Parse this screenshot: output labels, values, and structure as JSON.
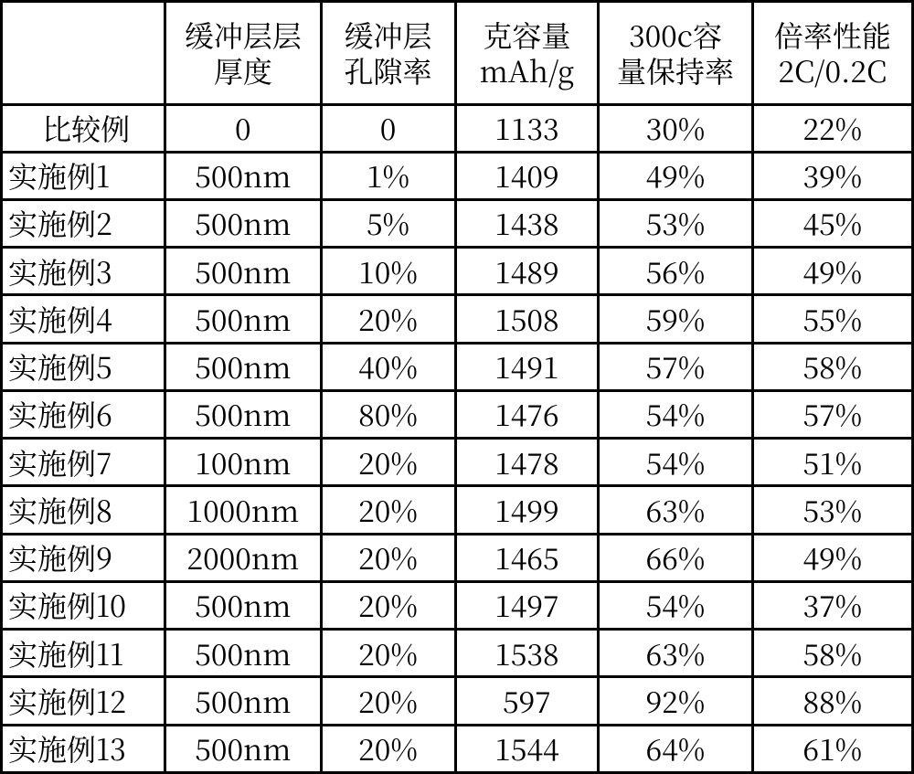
{
  "headers": {
    "label": "",
    "col1_line1": "缓冲层层",
    "col1_line2": "厚度",
    "col2_line1": "缓冲层",
    "col2_line2": "孔隙率",
    "col3_line1": "克容量",
    "col3_line2": "mAh/g",
    "col4_line1": "300c容",
    "col4_line2": "量保持率",
    "col5_line1": "倍率性能",
    "col5_line2": "2C/0.2C"
  },
  "rows": [
    {
      "label": "比较例",
      "c1": "0",
      "c2": "0",
      "c3": "1133",
      "c4": "30%",
      "c5": "22%"
    },
    {
      "label": "实施例1",
      "c1": "500nm",
      "c2": "1%",
      "c3": "1409",
      "c4": "49%",
      "c5": "39%"
    },
    {
      "label": "实施例2",
      "c1": "500nm",
      "c2": "5%",
      "c3": "1438",
      "c4": "53%",
      "c5": "45%"
    },
    {
      "label": "实施例3",
      "c1": "500nm",
      "c2": "10%",
      "c3": "1489",
      "c4": "56%",
      "c5": "49%"
    },
    {
      "label": "实施例4",
      "c1": "500nm",
      "c2": "20%",
      "c3": "1508",
      "c4": "59%",
      "c5": "55%"
    },
    {
      "label": "实施例5",
      "c1": "500nm",
      "c2": "40%",
      "c3": "1491",
      "c4": "57%",
      "c5": "58%"
    },
    {
      "label": "实施例6",
      "c1": "500nm",
      "c2": "80%",
      "c3": "1476",
      "c4": "54%",
      "c5": "57%"
    },
    {
      "label": "实施例7",
      "c1": "100nm",
      "c2": "20%",
      "c3": "1478",
      "c4": "54%",
      "c5": "51%"
    },
    {
      "label": "实施例8",
      "c1": "1000nm",
      "c2": "20%",
      "c3": "1499",
      "c4": "63%",
      "c5": "53%"
    },
    {
      "label": "实施例9",
      "c1": "2000nm",
      "c2": "20%",
      "c3": "1465",
      "c4": "66%",
      "c5": "49%"
    },
    {
      "label": "实施例10",
      "c1": "500nm",
      "c2": "20%",
      "c3": "1497",
      "c4": "54%",
      "c5": "37%"
    },
    {
      "label": "实施例11",
      "c1": "500nm",
      "c2": "20%",
      "c3": "1538",
      "c4": "63%",
      "c5": "58%"
    },
    {
      "label": "实施例12",
      "c1": "500nm",
      "c2": "20%",
      "c3": "597",
      "c4": "92%",
      "c5": "88%"
    },
    {
      "label": "实施例13",
      "c1": "500nm",
      "c2": "20%",
      "c3": "1544",
      "c4": "64%",
      "c5": "61%"
    }
  ]
}
